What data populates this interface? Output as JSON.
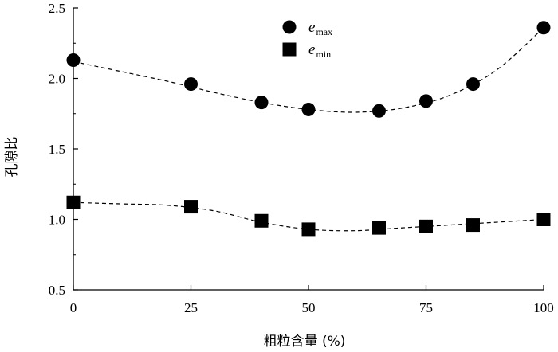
{
  "chart_data": {
    "type": "scatter",
    "xlabel": "粗粒含量 (%)",
    "ylabel": "孔隙比",
    "xlim": [
      0,
      100
    ],
    "ylim": [
      0.5,
      2.5
    ],
    "xticks": [
      "0",
      "25",
      "50",
      "75",
      "100"
    ],
    "yticks": [
      "0.5",
      "1.0",
      "1.5",
      "2.0",
      "2.5"
    ],
    "grid": false,
    "legend_position": "top-center",
    "series": [
      {
        "name": "e",
        "subscript": "max",
        "marker": "circle",
        "color": "#000000",
        "x": [
          0,
          25,
          40,
          50,
          65,
          75,
          85,
          100
        ],
        "y": [
          2.13,
          1.96,
          1.83,
          1.78,
          1.77,
          1.84,
          1.96,
          2.36
        ],
        "trend_x": [
          0,
          10,
          20,
          30,
          40,
          50,
          60,
          70,
          80,
          90,
          100
        ],
        "trend_y": [
          2.12,
          2.05,
          1.98,
          1.9,
          1.83,
          1.78,
          1.76,
          1.79,
          1.88,
          2.06,
          2.36
        ]
      },
      {
        "name": "e",
        "subscript": "min",
        "marker": "square",
        "color": "#000000",
        "x": [
          0,
          25,
          40,
          50,
          65,
          75,
          85,
          100
        ],
        "y": [
          1.12,
          1.09,
          0.99,
          0.93,
          0.94,
          0.95,
          0.96,
          1.0
        ],
        "trend_x": [
          0,
          10,
          20,
          30,
          40,
          50,
          60,
          70,
          80,
          90,
          100
        ],
        "trend_y": [
          1.12,
          1.11,
          1.1,
          1.06,
          0.98,
          0.93,
          0.92,
          0.94,
          0.96,
          0.98,
          1.0
        ]
      }
    ]
  }
}
